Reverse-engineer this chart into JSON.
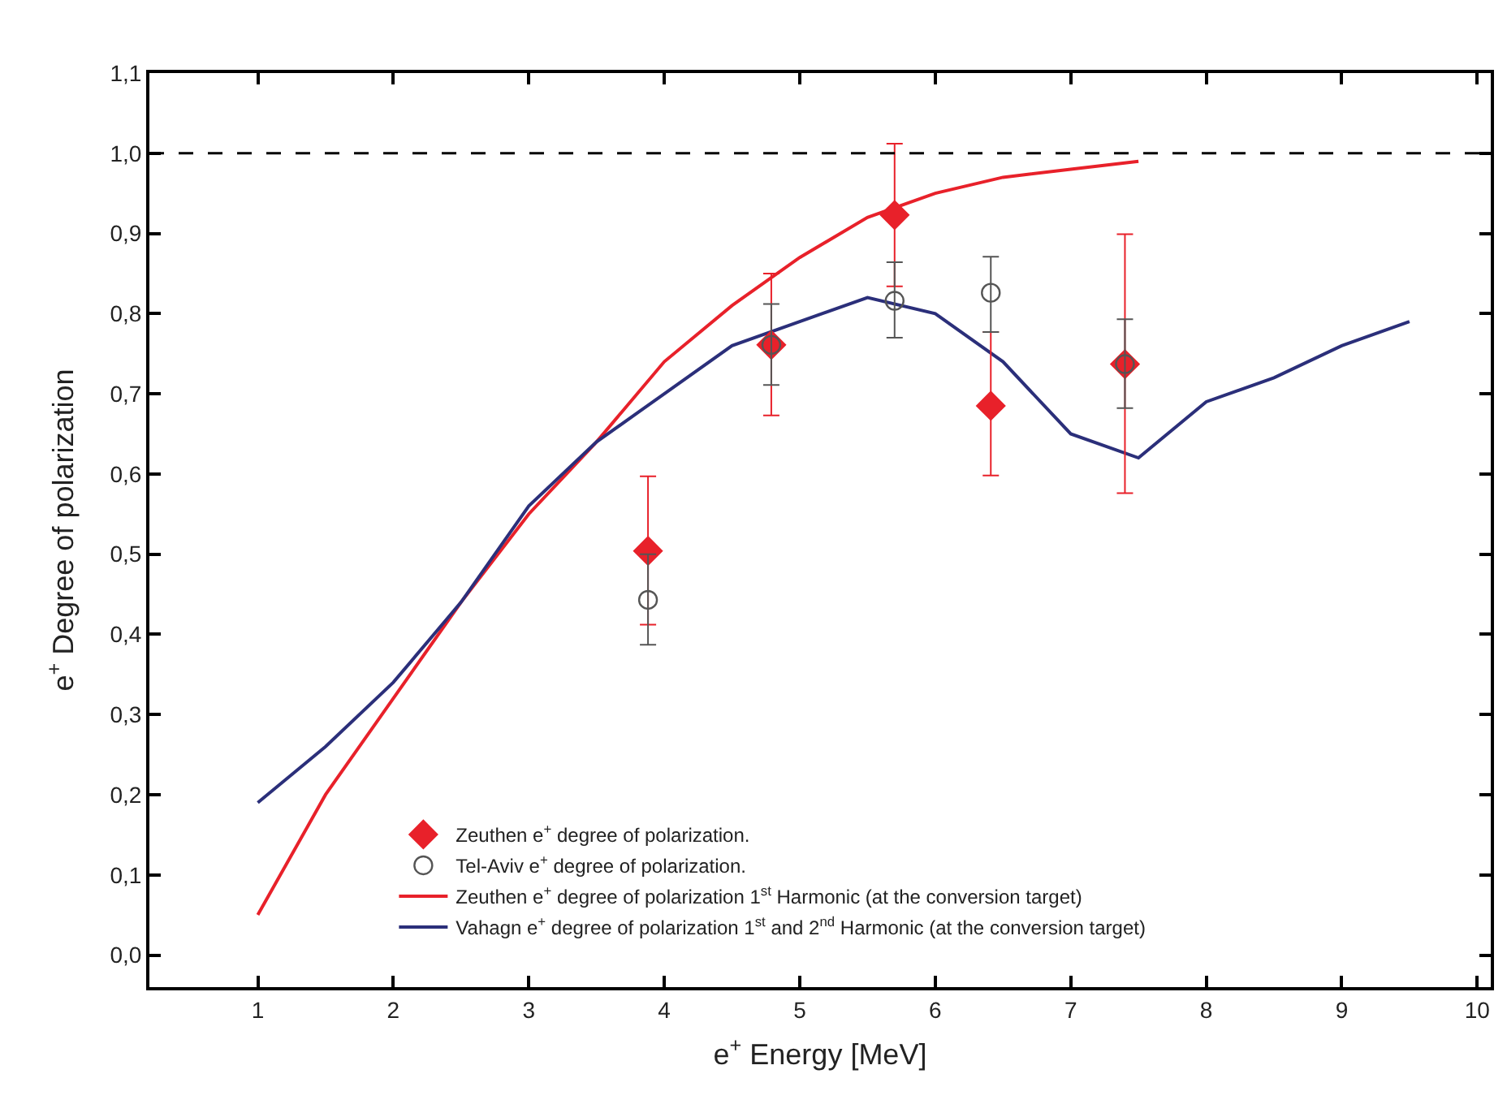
{
  "chart_data": {
    "type": "line",
    "xlabel": "e$^{+}$ Energy [MeV]",
    "ylabel": "e$^{+}$ Degree of polarization",
    "xlim": [
      0.2,
      10.1
    ],
    "xticks": [
      1,
      2,
      3,
      4,
      5,
      6,
      7,
      8,
      9,
      10
    ],
    "ylim": [
      -0.04,
      1.1
    ],
    "yticks": [
      {
        "value": 0,
        "label": "0,0"
      },
      {
        "value": 0.1,
        "label": "0,1"
      },
      {
        "value": 0.2,
        "label": "0,2"
      },
      {
        "value": 0.3,
        "label": "0,3"
      },
      {
        "value": 0.4,
        "label": "0,4"
      },
      {
        "value": 0.5,
        "label": "0,5"
      },
      {
        "value": 0.6,
        "label": "0,6"
      },
      {
        "value": 0.7,
        "label": "0,7"
      },
      {
        "value": 0.8,
        "label": "0,8"
      },
      {
        "value": 0.9,
        "label": "0,9"
      },
      {
        "value": 1.0,
        "label": "1,0"
      },
      {
        "value": 1.1,
        "label": "1,1"
      }
    ],
    "grid": false,
    "legend": "bottom",
    "ref_lines": [
      {
        "axis": "y",
        "value": 1.0,
        "color": "#000000",
        "line_style": "dashed"
      }
    ],
    "series": [
      {
        "name": "Zeuthen e$^{+}$ degree of polarization 1$^{st}$ Harmonic (at the conversion target)",
        "color": "#e8212a",
        "marker": "none",
        "line_style": "solid",
        "x": [
          1,
          1.5,
          2,
          2.5,
          3,
          3.5,
          4,
          4.5,
          5,
          5.5,
          6,
          6.5,
          7,
          7.5
        ],
        "values": [
          0.05,
          0.2,
          0.32,
          0.44,
          0.55,
          0.64,
          0.74,
          0.81,
          0.87,
          0.92,
          0.95,
          0.97,
          0.98,
          0.99
        ]
      },
      {
        "name": "Vahagn e$^{+}$ degree of polarization 1$^{st}$ and 2$^{nd}$ Harmonic (at the conversion target)",
        "color": "#2b2f7a",
        "marker": "none",
        "line_style": "solid",
        "x": [
          1,
          1.5,
          2,
          2.5,
          3,
          3.5,
          4,
          4.5,
          5,
          5.5,
          6,
          6.5,
          7,
          7.5,
          8,
          8.5,
          9,
          9.5
        ],
        "values": [
          0.19,
          0.26,
          0.34,
          0.44,
          0.56,
          0.64,
          0.7,
          0.76,
          0.79,
          0.82,
          0.8,
          0.74,
          0.65,
          0.62,
          0.69,
          0.72,
          0.76,
          0.79
        ]
      },
      {
        "name": "Zeuthen e$^{+}$ degree of polarization.",
        "type": "scatter",
        "color": "#e8212a",
        "marker": "diamond",
        "x": [
          3.88,
          4.79,
          5.7,
          6.41,
          7.4
        ],
        "values": [
          0.504,
          0.761,
          0.923,
          0.685,
          0.737
        ],
        "errors": [
          [
            0.412,
            0.597
          ],
          [
            0.673,
            0.85
          ],
          [
            0.834,
            1.012
          ],
          [
            0.598,
            0.777
          ],
          [
            0.576,
            0.899
          ]
        ]
      },
      {
        "name": "Tel-Aviv e$^{+}$ degree of polarization.",
        "type": "scatter",
        "color": "#555555",
        "marker": "circle",
        "x": [
          3.88,
          4.79,
          5.7,
          6.41,
          7.4
        ],
        "values": [
          0.443,
          0.761,
          0.816,
          0.826,
          0.737
        ],
        "errors": [
          [
            0.387,
            0.5
          ],
          [
            0.711,
            0.812
          ],
          [
            0.77,
            0.864
          ],
          [
            0.777,
            0.871
          ],
          [
            0.682,
            0.793
          ]
        ]
      }
    ]
  }
}
